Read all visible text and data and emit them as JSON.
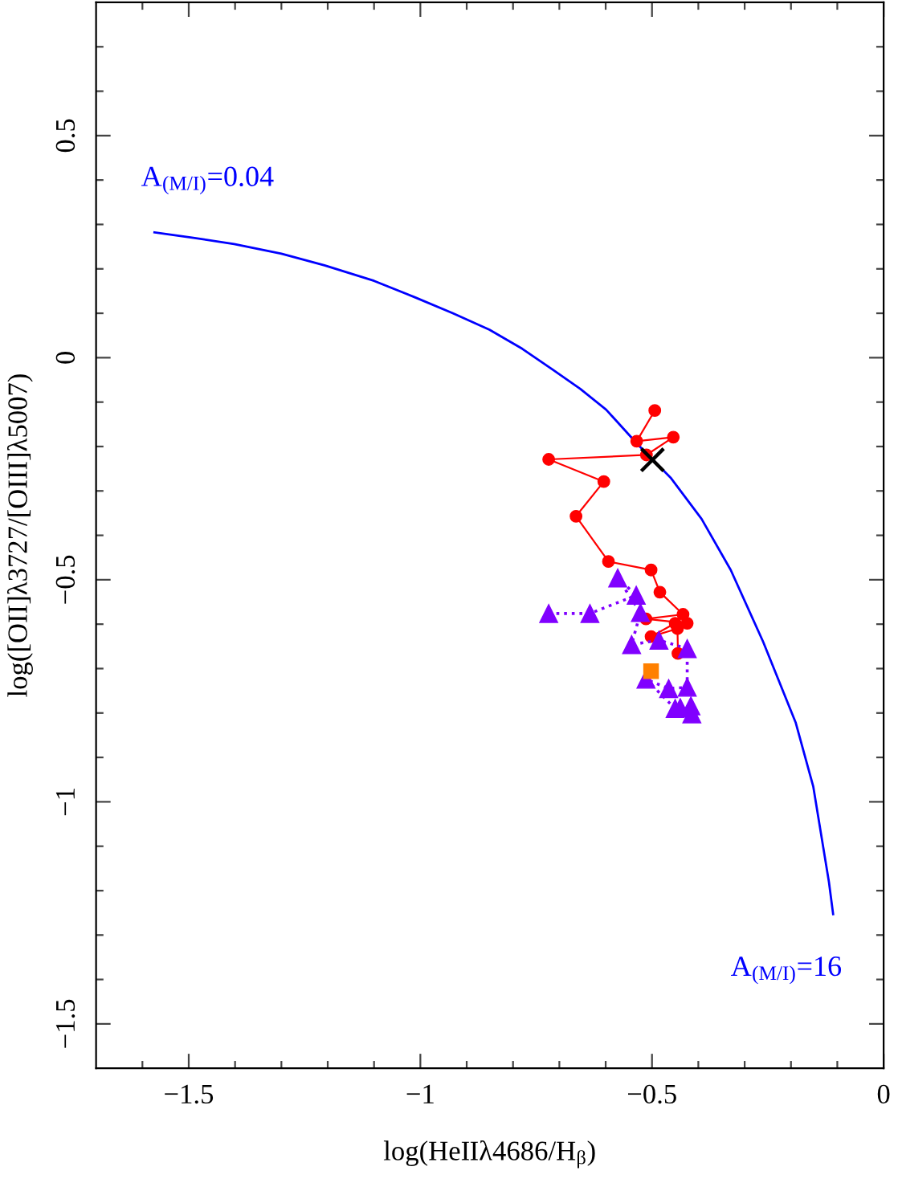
{
  "chart_data": {
    "type": "line",
    "xlabel": "log(HeIIλ4686/H$_{β}$)",
    "ylabel": "log([OII]λ3727/[OIII]λ5007)",
    "xlim": [
      -1.7,
      0
    ],
    "ylim": [
      -1.6,
      0.8
    ],
    "xticks": [
      {
        "value": -1.6,
        "label": null
      },
      {
        "value": -1.5,
        "label": "−1.5"
      },
      {
        "value": -1.4,
        "label": null
      },
      {
        "value": -1.3,
        "label": null
      },
      {
        "value": -1.2,
        "label": null
      },
      {
        "value": -1.1,
        "label": null
      },
      {
        "value": -1.0,
        "label": "−1"
      },
      {
        "value": -0.9,
        "label": null
      },
      {
        "value": -0.8,
        "label": null
      },
      {
        "value": -0.7,
        "label": null
      },
      {
        "value": -0.6,
        "label": null
      },
      {
        "value": -0.5,
        "label": "−0.5"
      },
      {
        "value": -0.4,
        "label": null
      },
      {
        "value": -0.3,
        "label": null
      },
      {
        "value": -0.2,
        "label": null
      },
      {
        "value": -0.1,
        "label": null
      },
      0
    ],
    "yticks": [
      {
        "value": -1.5,
        "label": "−1.5"
      },
      {
        "value": -1.4,
        "label": null
      },
      {
        "value": -1.3,
        "label": null
      },
      {
        "value": -1.2,
        "label": null
      },
      {
        "value": -1.1,
        "label": null
      },
      {
        "value": -1.0,
        "label": "−1"
      },
      {
        "value": -0.9,
        "label": null
      },
      {
        "value": -0.8,
        "label": null
      },
      {
        "value": -0.7,
        "label": null
      },
      {
        "value": -0.6,
        "label": null
      },
      {
        "value": -0.5,
        "label": "−0.5"
      },
      {
        "value": -0.4,
        "label": null
      },
      {
        "value": -0.3,
        "label": null
      },
      {
        "value": -0.2,
        "label": null
      },
      {
        "value": -0.1,
        "label": null
      },
      0,
      {
        "value": 0.1,
        "label": null
      },
      {
        "value": 0.2,
        "label": null
      },
      {
        "value": 0.3,
        "label": null
      },
      {
        "value": 0.4,
        "label": null
      },
      0.5,
      {
        "value": 0.6,
        "label": null
      },
      {
        "value": 0.7,
        "label": null
      }
    ],
    "annotations": [
      {
        "text": "A$_{(M/I)}$=0.04",
        "x": -1.574,
        "y": 0.282
      },
      {
        "text": "A$_{(M/I)}$=16",
        "x": -0.109,
        "y": -1.253
      }
    ],
    "series": [
      {
        "color": "#0000ff",
        "marker": "none",
        "line_style": "solid",
        "x": [
          -1.574,
          -1.49,
          -1.402,
          -1.3,
          -1.207,
          -1.1,
          -1.012,
          -0.93,
          -0.851,
          -0.78,
          -0.714,
          -0.655,
          -0.599,
          -0.531,
          -0.46,
          -0.393,
          -0.33,
          -0.26,
          -0.19,
          -0.152,
          -0.118,
          -0.109
        ],
        "values": [
          0.282,
          0.27,
          0.256,
          0.234,
          0.208,
          0.173,
          0.136,
          0.1,
          0.063,
          0.02,
          -0.027,
          -0.07,
          -0.117,
          -0.195,
          -0.27,
          -0.363,
          -0.478,
          -0.64,
          -0.821,
          -0.965,
          -1.181,
          -1.253
        ]
      },
      {
        "color": "#ff0000",
        "marker": "circle",
        "line_style": "solid",
        "x": [
          -0.494,
          -0.533,
          -0.454,
          -0.512,
          -0.723,
          -0.604,
          -0.664,
          -0.594,
          -0.502,
          -0.483,
          -0.433,
          -0.513,
          -0.424,
          -0.45,
          -0.502,
          -0.445,
          -0.444
        ],
        "values": [
          -0.119,
          -0.188,
          -0.179,
          -0.219,
          -0.229,
          -0.279,
          -0.357,
          -0.459,
          -0.478,
          -0.528,
          -0.578,
          -0.588,
          -0.598,
          -0.598,
          -0.628,
          -0.61,
          -0.666
        ]
      },
      {
        "color": "#8000ff",
        "marker": "triangle",
        "line_style": "dotted",
        "x": [
          -0.723,
          -0.634,
          -0.534,
          -0.574,
          -0.525,
          -0.544,
          -0.485,
          -0.424,
          -0.424,
          -0.464,
          -0.513,
          -0.45,
          -0.439,
          -0.416,
          -0.414
        ],
        "values": [
          -0.576,
          -0.576,
          -0.535,
          -0.496,
          -0.574,
          -0.646,
          -0.636,
          -0.655,
          -0.742,
          -0.745,
          -0.724,
          -0.79,
          -0.788,
          -0.784,
          -0.802
        ]
      },
      {
        "type": "scatter",
        "color": "#ff8000",
        "marker": "square",
        "x": [
          -0.502
        ],
        "values": [
          -0.706
        ]
      },
      {
        "type": "scatter",
        "color": "#000000",
        "marker": "cross",
        "x": [
          -0.499
        ],
        "values": [
          -0.23
        ]
      }
    ]
  }
}
